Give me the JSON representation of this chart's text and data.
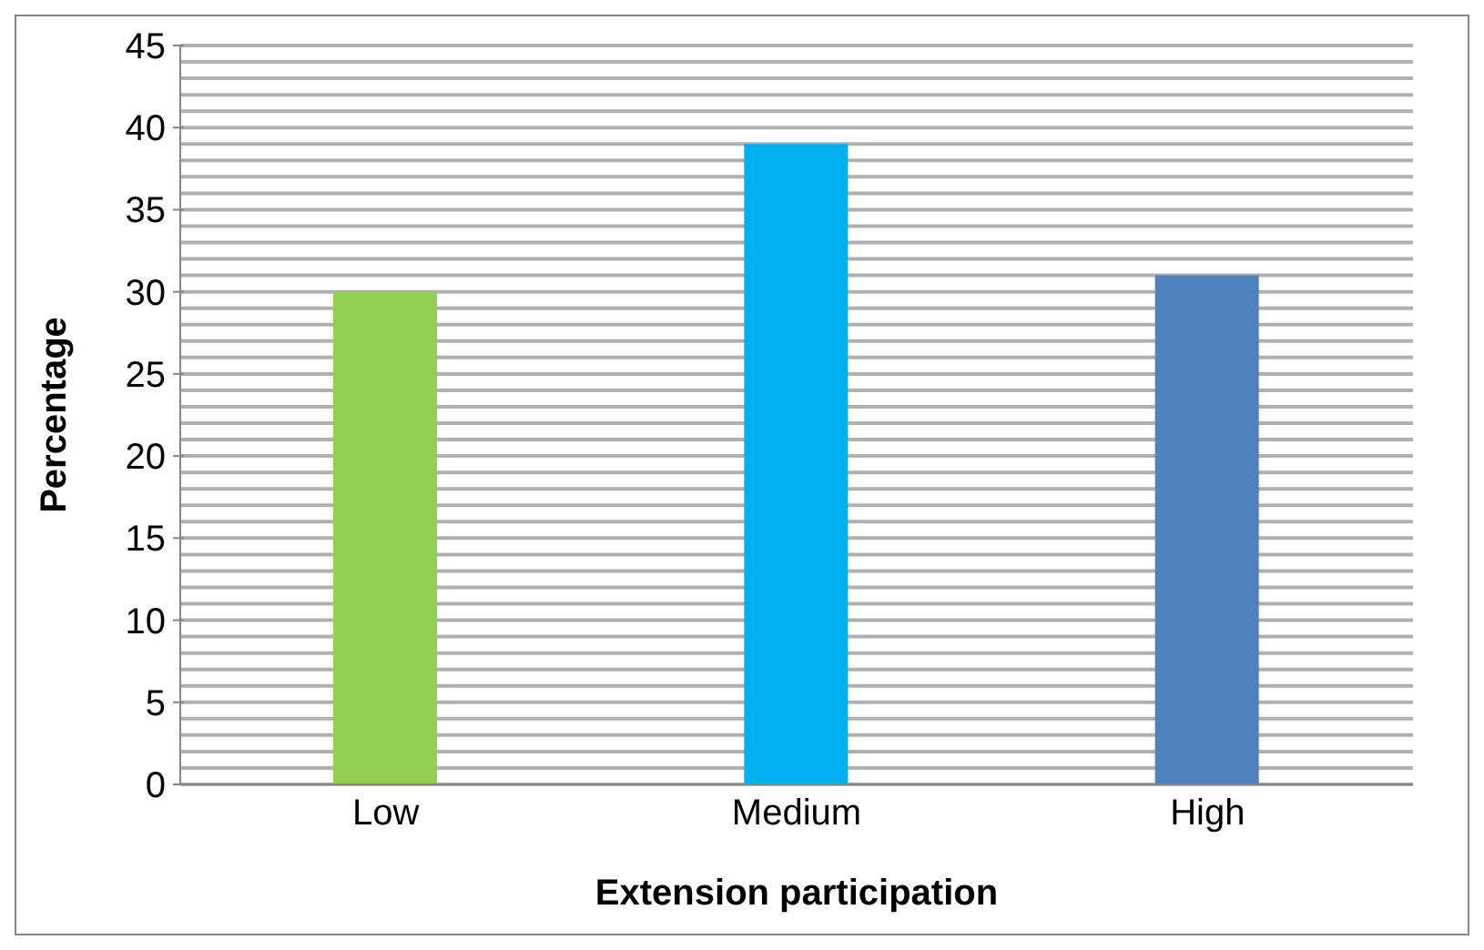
{
  "chart_data": {
    "type": "bar",
    "xlabel": "Extension participation",
    "ylabel": "Percentage",
    "categories": [
      "Low",
      "Medium",
      "High"
    ],
    "values": [
      30,
      39,
      31
    ],
    "colors": [
      "#92d050",
      "#00b0f0",
      "#4f81bd"
    ],
    "ylim": [
      0,
      45
    ],
    "yticks": [
      0,
      {
        "value": 1,
        "label": null
      },
      {
        "value": 2,
        "label": null
      },
      {
        "value": 3,
        "label": null
      },
      {
        "value": 4,
        "label": null
      },
      5,
      {
        "value": 6,
        "label": null
      },
      {
        "value": 7,
        "label": null
      },
      {
        "value": 8,
        "label": null
      },
      {
        "value": 9,
        "label": null
      },
      10,
      {
        "value": 11,
        "label": null
      },
      {
        "value": 12,
        "label": null
      },
      {
        "value": 13,
        "label": null
      },
      {
        "value": 14,
        "label": null
      },
      15,
      {
        "value": 16,
        "label": null
      },
      {
        "value": 17,
        "label": null
      },
      {
        "value": 18,
        "label": null
      },
      {
        "value": 19,
        "label": null
      },
      20,
      {
        "value": 21,
        "label": null
      },
      {
        "value": 22,
        "label": null
      },
      {
        "value": 23,
        "label": null
      },
      {
        "value": 24,
        "label": null
      },
      25,
      {
        "value": 26,
        "label": null
      },
      {
        "value": 27,
        "label": null
      },
      {
        "value": 28,
        "label": null
      },
      {
        "value": 29,
        "label": null
      },
      30,
      {
        "value": 31,
        "label": null
      },
      {
        "value": 32,
        "label": null
      },
      {
        "value": 33,
        "label": null
      },
      {
        "value": 34,
        "label": null
      },
      35,
      {
        "value": 36,
        "label": null
      },
      {
        "value": 37,
        "label": null
      },
      {
        "value": 38,
        "label": null
      },
      {
        "value": 39,
        "label": null
      },
      40,
      {
        "value": 41,
        "label": null
      },
      {
        "value": 42,
        "label": null
      },
      {
        "value": 43,
        "label": null
      },
      {
        "value": 44,
        "label": null
      },
      45
    ],
    "grid": "y",
    "legend": false
  }
}
